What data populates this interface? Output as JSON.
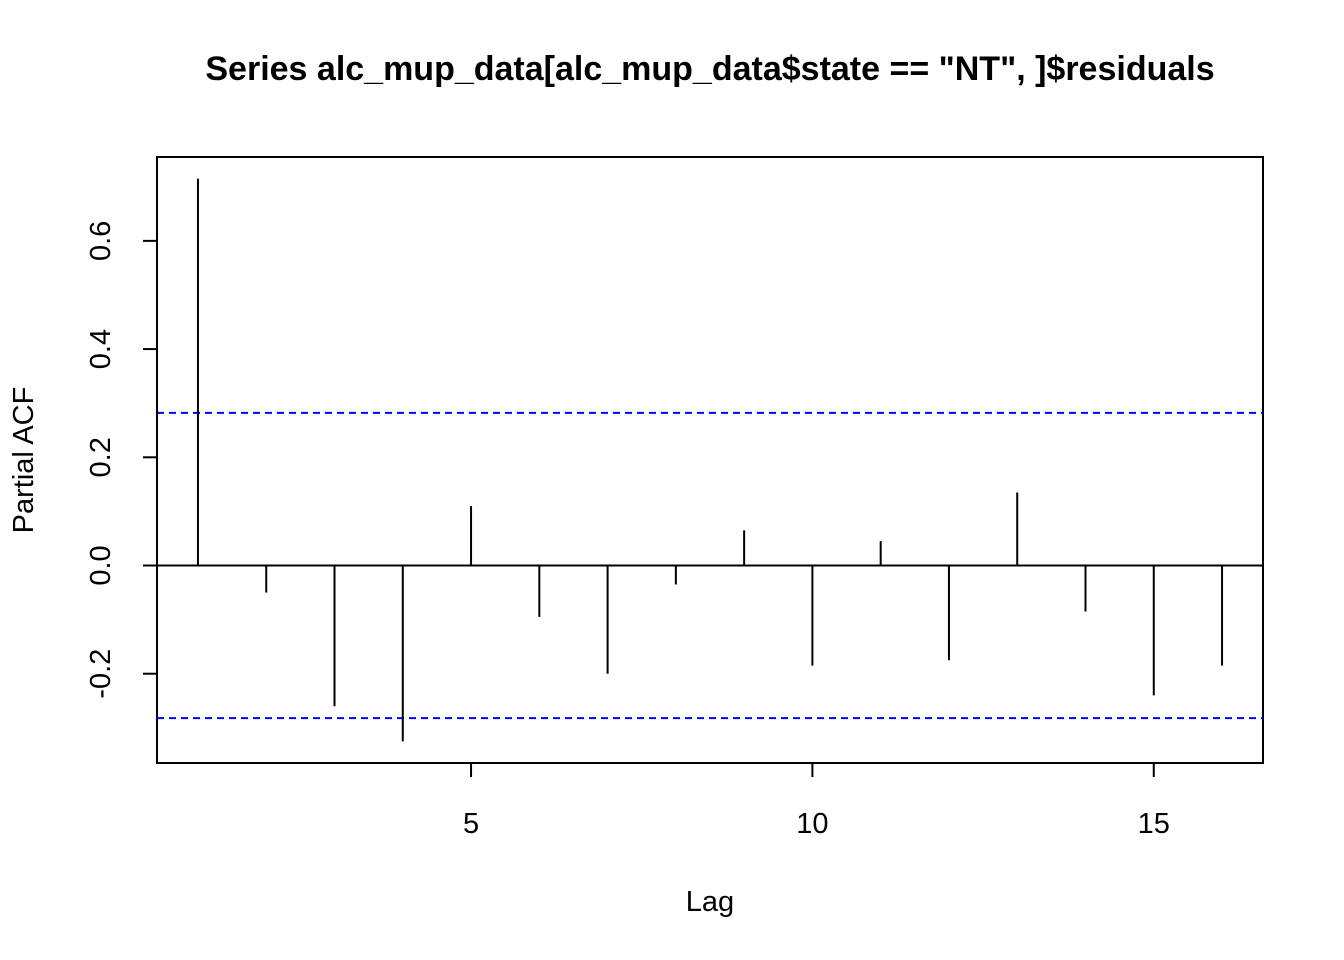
{
  "chart_data": {
    "type": "bar",
    "title": "Series  alc_mup_data[alc_mup_data$state == \"NT\", ]$residuals",
    "xlabel": "Lag",
    "ylabel": "Partial ACF",
    "x": [
      1,
      2,
      3,
      4,
      5,
      6,
      7,
      8,
      9,
      10,
      11,
      12,
      13,
      14,
      15,
      16
    ],
    "values": [
      0.715,
      -0.05,
      -0.26,
      -0.325,
      0.11,
      -0.095,
      -0.2,
      -0.035,
      0.065,
      -0.185,
      0.045,
      -0.175,
      0.135,
      -0.085,
      -0.24,
      -0.185
    ],
    "xlim": [
      0.4,
      16.6
    ],
    "ylim": [
      -0.365,
      0.755
    ],
    "xticks": [
      5,
      10,
      15
    ],
    "xtick_labels": [
      "5",
      "10",
      "15"
    ],
    "yticks": [
      -0.2,
      0.0,
      0.2,
      0.4,
      0.6
    ],
    "ytick_labels": [
      "-0.2",
      "0.0",
      "0.2",
      "0.4",
      "0.6"
    ],
    "confidence_bound": 0.282,
    "grid": false,
    "colors": {
      "spikes": "#000000",
      "confidence": "#0000ff",
      "zero_line": "#000000",
      "frame": "#000000"
    }
  }
}
